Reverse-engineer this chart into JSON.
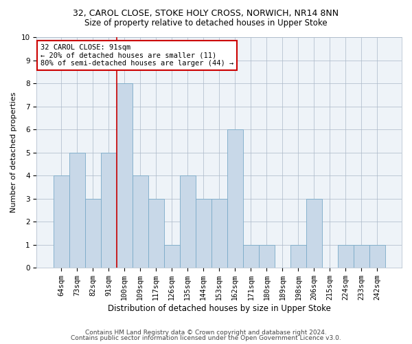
{
  "title1": "32, CAROL CLOSE, STOKE HOLY CROSS, NORWICH, NR14 8NN",
  "title2": "Size of property relative to detached houses in Upper Stoke",
  "xlabel": "Distribution of detached houses by size in Upper Stoke",
  "ylabel": "Number of detached properties",
  "categories": [
    "64sqm",
    "73sqm",
    "82sqm",
    "91sqm",
    "100sqm",
    "109sqm",
    "117sqm",
    "126sqm",
    "135sqm",
    "144sqm",
    "153sqm",
    "162sqm",
    "171sqm",
    "180sqm",
    "189sqm",
    "198sqm",
    "206sqm",
    "215sqm",
    "224sqm",
    "233sqm",
    "242sqm"
  ],
  "values": [
    4,
    5,
    3,
    5,
    8,
    4,
    3,
    1,
    4,
    3,
    3,
    6,
    1,
    1,
    0,
    1,
    3,
    0,
    1,
    1,
    1
  ],
  "bar_color": "#c8d8e8",
  "bar_edge_color": "#7aaac8",
  "vline_index": 3,
  "vline_color": "#cc0000",
  "annotation_text": "32 CAROL CLOSE: 91sqm\n← 20% of detached houses are smaller (11)\n80% of semi-detached houses are larger (44) →",
  "annotation_box_color": "#cc0000",
  "ylim": [
    0,
    10
  ],
  "yticks": [
    0,
    1,
    2,
    3,
    4,
    5,
    6,
    7,
    8,
    9,
    10
  ],
  "footer1": "Contains HM Land Registry data © Crown copyright and database right 2024.",
  "footer2": "Contains public sector information licensed under the Open Government Licence v3.0.",
  "plot_bg_color": "#eef3f8",
  "title1_fontsize": 9,
  "title2_fontsize": 8.5,
  "xlabel_fontsize": 8.5,
  "ylabel_fontsize": 8,
  "tick_fontsize": 7.5,
  "annotation_fontsize": 7.5,
  "footer_fontsize": 6.5
}
